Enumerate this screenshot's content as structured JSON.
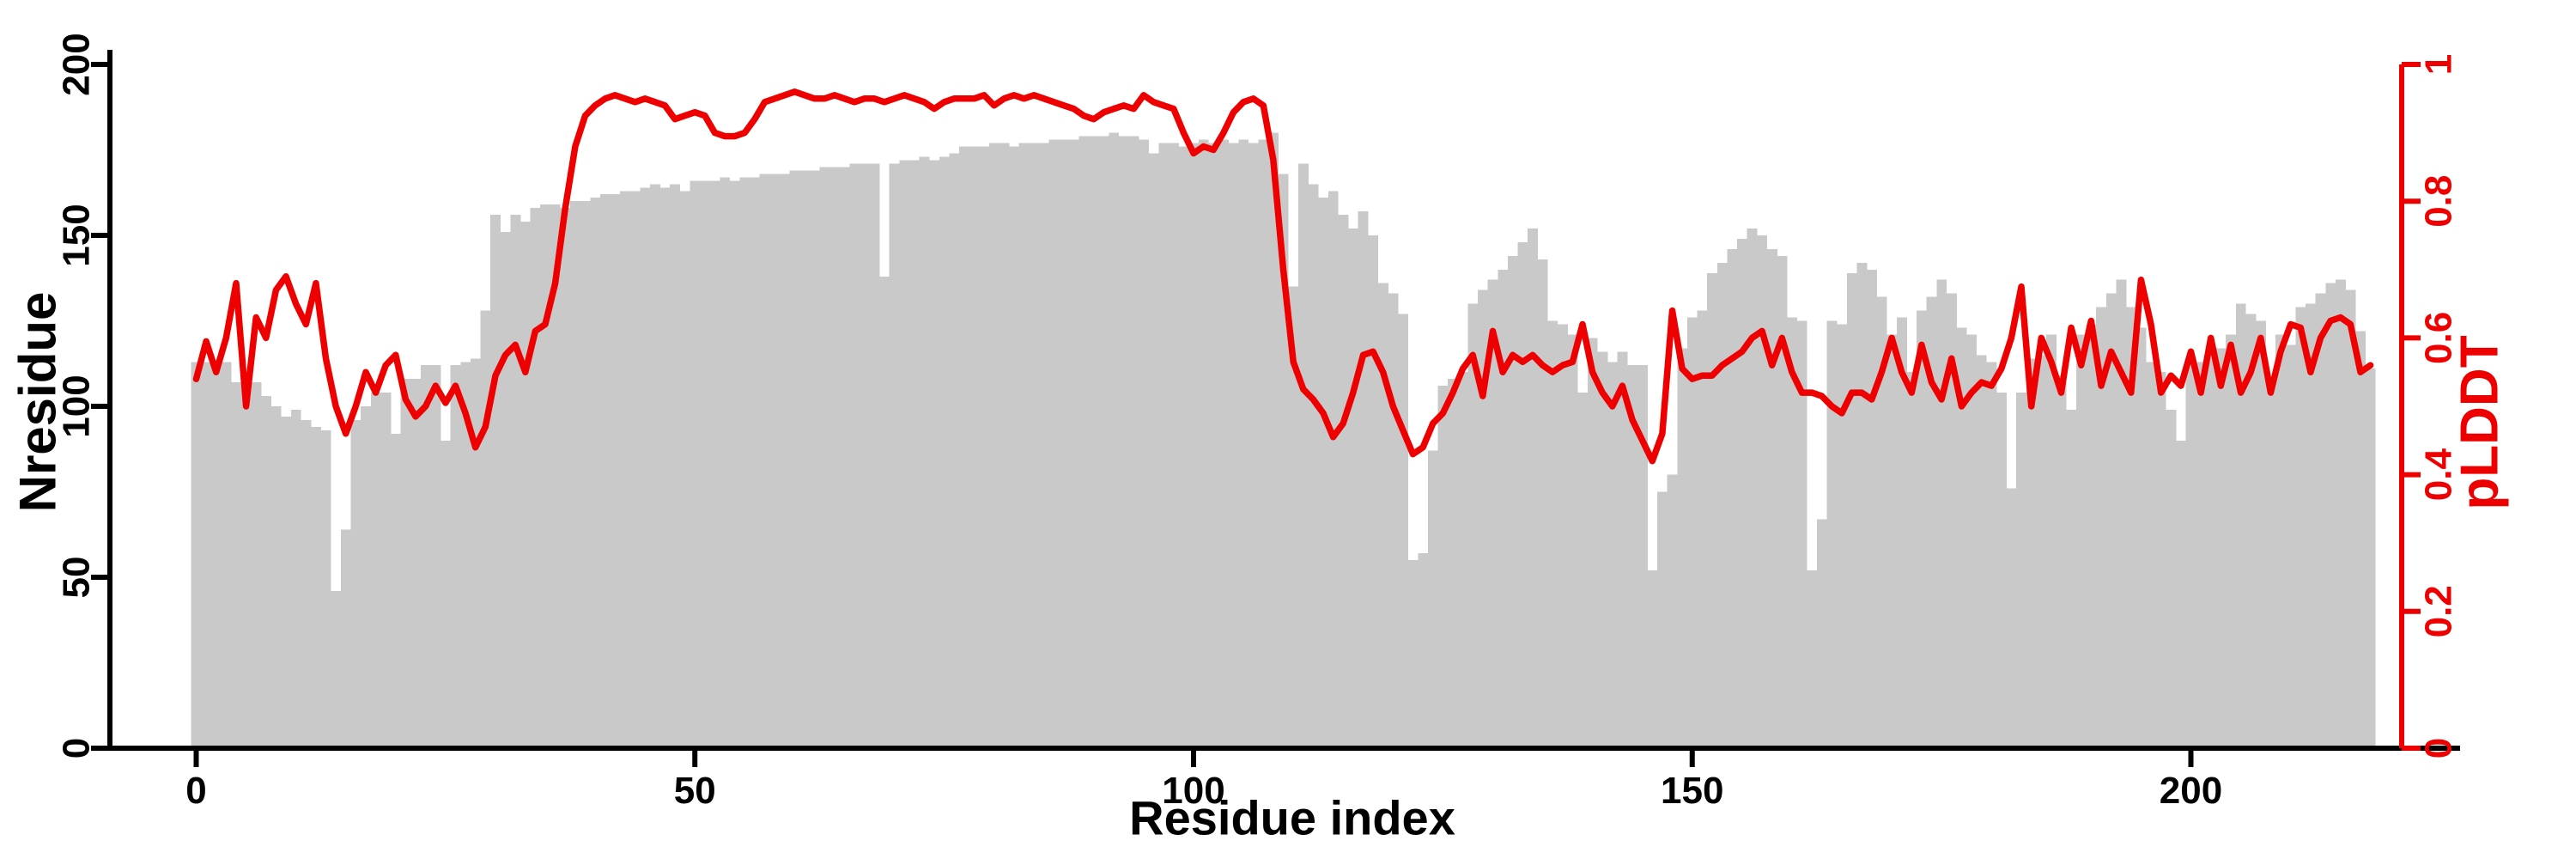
{
  "chart_data": {
    "type": "combo-bar-line",
    "title": "",
    "x_label": "Residue index",
    "x_start": 0,
    "x_ticks": [
      "0",
      "50",
      "100",
      "150",
      "200"
    ],
    "x_tick_values": [
      0,
      50,
      100,
      150,
      200
    ],
    "x_range": [
      0,
      219
    ],
    "grid": false,
    "legend_position": "none",
    "background_color": "#ffffff",
    "axis_color": "#000000",
    "left_axis": {
      "label": "Nresidue",
      "ticks": [
        "0",
        "50",
        "100",
        "150",
        "200"
      ],
      "tick_values": [
        0,
        50,
        100,
        150,
        200
      ],
      "range": [
        0,
        200
      ],
      "color": "#000000"
    },
    "right_axis": {
      "label": "pLDDT",
      "ticks": [
        "0",
        "0.2",
        "0.4",
        "0.6",
        "0.8",
        "1"
      ],
      "tick_values": [
        0,
        0.2,
        0.4,
        0.6,
        0.8,
        1
      ],
      "range": [
        0,
        1
      ],
      "color": "#ee0000"
    },
    "series": [
      {
        "name": "Nresidue",
        "type": "bar",
        "color": "#c9c9c9",
        "values": [
          113,
          113,
          113,
          113,
          107,
          107,
          107,
          103,
          100,
          97,
          99,
          96,
          94,
          93,
          46,
          64,
          96,
          100,
          104,
          104,
          92,
          108,
          108,
          112,
          112,
          90,
          112,
          113,
          114,
          128,
          156,
          151,
          156,
          154,
          158,
          159,
          159,
          158,
          160,
          160,
          161,
          162,
          162,
          163,
          163,
          164,
          165,
          164,
          165,
          163,
          166,
          166,
          166,
          167,
          166,
          167,
          167,
          168,
          168,
          168,
          169,
          169,
          169,
          170,
          170,
          170,
          171,
          171,
          171,
          138,
          171,
          172,
          172,
          173,
          172,
          173,
          174,
          176,
          176,
          176,
          177,
          177,
          176,
          177,
          177,
          177,
          178,
          178,
          178,
          179,
          179,
          179,
          180,
          179,
          179,
          178,
          174,
          177,
          177,
          176,
          177,
          178,
          177,
          178,
          177,
          178,
          177,
          178,
          180,
          168,
          135,
          171,
          165,
          161,
          163,
          156,
          152,
          157,
          150,
          136,
          133,
          127,
          55,
          57,
          87,
          106,
          108,
          110,
          130,
          134,
          137,
          140,
          144,
          148,
          152,
          143,
          125,
          124,
          121,
          104,
          120,
          116,
          113,
          116,
          112,
          112,
          52,
          75,
          80,
          117,
          126,
          128,
          139,
          142,
          146,
          149,
          152,
          150,
          146,
          144,
          126,
          125,
          52,
          67,
          125,
          124,
          139,
          142,
          140,
          132,
          121,
          126,
          110,
          128,
          132,
          137,
          133,
          123,
          121,
          115,
          113,
          104,
          76,
          104,
          114,
          115,
          121,
          109,
          99,
          121,
          124,
          129,
          133,
          137,
          129,
          123,
          113,
          110,
          99,
          90,
          114,
          113,
          115,
          117,
          121,
          130,
          127,
          125,
          106,
          121,
          118,
          129,
          130,
          133,
          136,
          137,
          134,
          122,
          111
        ]
      },
      {
        "name": "pLDDT",
        "type": "line",
        "color": "#ee0000",
        "values": [
          0.54,
          0.595,
          0.55,
          0.6,
          0.68,
          0.5,
          0.63,
          0.6,
          0.67,
          0.69,
          0.65,
          0.62,
          0.68,
          0.57,
          0.5,
          0.46,
          0.5,
          0.55,
          0.52,
          0.56,
          0.575,
          0.51,
          0.485,
          0.5,
          0.53,
          0.505,
          0.53,
          0.49,
          0.44,
          0.47,
          0.545,
          0.575,
          0.59,
          0.55,
          0.61,
          0.62,
          0.68,
          0.79,
          0.88,
          0.925,
          0.94,
          0.95,
          0.955,
          0.95,
          0.945,
          0.95,
          0.945,
          0.94,
          0.92,
          0.925,
          0.93,
          0.925,
          0.9,
          0.895,
          0.895,
          0.9,
          0.92,
          0.945,
          0.95,
          0.955,
          0.96,
          0.955,
          0.95,
          0.95,
          0.955,
          0.95,
          0.945,
          0.95,
          0.95,
          0.945,
          0.95,
          0.955,
          0.95,
          0.945,
          0.935,
          0.945,
          0.95,
          0.95,
          0.95,
          0.955,
          0.94,
          0.95,
          0.955,
          0.95,
          0.955,
          0.95,
          0.945,
          0.94,
          0.935,
          0.925,
          0.92,
          0.93,
          0.935,
          0.94,
          0.935,
          0.955,
          0.945,
          0.94,
          0.935,
          0.9,
          0.87,
          0.88,
          0.875,
          0.9,
          0.93,
          0.945,
          0.95,
          0.94,
          0.86,
          0.7,
          0.565,
          0.525,
          0.51,
          0.49,
          0.455,
          0.475,
          0.52,
          0.575,
          0.58,
          0.55,
          0.5,
          0.465,
          0.43,
          0.44,
          0.475,
          0.49,
          0.52,
          0.555,
          0.575,
          0.515,
          0.61,
          0.55,
          0.575,
          0.565,
          0.575,
          0.56,
          0.55,
          0.56,
          0.565,
          0.62,
          0.55,
          0.52,
          0.5,
          0.53,
          0.48,
          0.45,
          0.42,
          0.46,
          0.64,
          0.555,
          0.54,
          0.545,
          0.545,
          0.56,
          0.57,
          0.58,
          0.6,
          0.61,
          0.56,
          0.6,
          0.55,
          0.52,
          0.52,
          0.515,
          0.5,
          0.49,
          0.52,
          0.52,
          0.51,
          0.55,
          0.6,
          0.55,
          0.52,
          0.59,
          0.535,
          0.51,
          0.57,
          0.5,
          0.52,
          0.535,
          0.53,
          0.555,
          0.6,
          0.675,
          0.5,
          0.6,
          0.565,
          0.52,
          0.615,
          0.56,
          0.625,
          0.53,
          0.58,
          0.55,
          0.52,
          0.685,
          0.62,
          0.52,
          0.545,
          0.53,
          0.58,
          0.52,
          0.6,
          0.53,
          0.59,
          0.52,
          0.55,
          0.6,
          0.52,
          0.58,
          0.62,
          0.615,
          0.55,
          0.6,
          0.625,
          0.63,
          0.62,
          0.55,
          0.56
        ]
      }
    ]
  },
  "layout_note": "bars sit on x-axis; red line overlays; no legend; no gridlines"
}
